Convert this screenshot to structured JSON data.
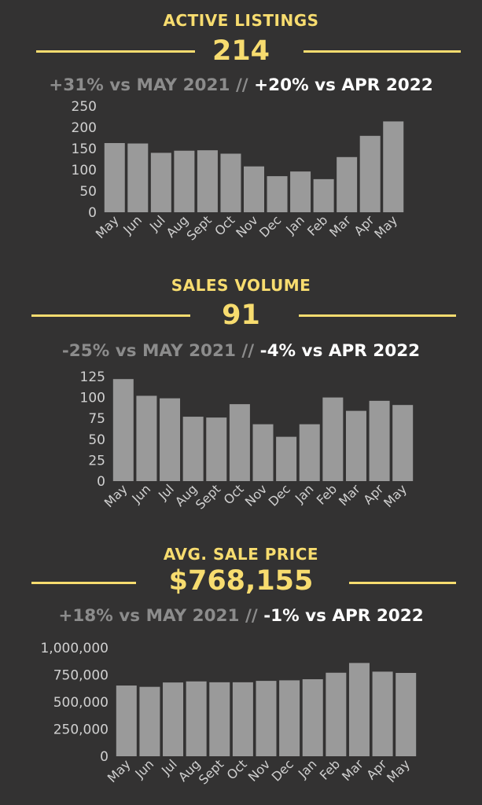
{
  "colors": {
    "background": "#333232",
    "accent": "#f7dc6f",
    "bar": "#9a9a9a",
    "axis_text": "#d0d0d0",
    "muted_text": "#8c8c8c",
    "white_text": "#ffffff"
  },
  "sections": [
    {
      "title": "ACTIVE LISTINGS",
      "value": "214",
      "compare_year": "+31% vs MAY 2021",
      "separator": "//",
      "compare_month": "+20% vs APR 2022"
    },
    {
      "title": "SALES VOLUME",
      "value": "91",
      "compare_year": "-25% vs MAY 2021",
      "separator": "//",
      "compare_month": "-4% vs APR 2022"
    },
    {
      "title": "AVG. SALE PRICE",
      "value": "$768,155",
      "compare_year": "+18% vs MAY 2021",
      "separator": "//",
      "compare_month": "-1% vs APR 2022"
    }
  ],
  "chart_data": [
    {
      "type": "bar",
      "title": "",
      "categories": [
        "May",
        "Jun",
        "Jul",
        "Aug",
        "Sept",
        "Oct",
        "Nov",
        "Dec",
        "Jan",
        "Feb",
        "Mar",
        "Apr",
        "May"
      ],
      "values": [
        163,
        162,
        140,
        145,
        146,
        138,
        108,
        85,
        96,
        78,
        130,
        180,
        214
      ],
      "ylim": [
        0,
        250
      ],
      "yticks": [
        0,
        50,
        100,
        150,
        200,
        250
      ],
      "ytick_labels": [
        "0",
        "50",
        "100",
        "150",
        "200",
        "250"
      ],
      "grid": false,
      "legend": "none"
    },
    {
      "type": "bar",
      "title": "",
      "categories": [
        "May",
        "Jun",
        "Jul",
        "Aug",
        "Sept",
        "Oct",
        "Nov",
        "Dec",
        "Jan",
        "Feb",
        "Mar",
        "Apr",
        "May"
      ],
      "values": [
        122,
        102,
        99,
        77,
        76,
        92,
        68,
        53,
        68,
        100,
        84,
        96,
        91
      ],
      "ylim": [
        0,
        125
      ],
      "yticks": [
        0,
        25,
        50,
        75,
        100,
        125
      ],
      "ytick_labels": [
        "0",
        "25",
        "50",
        "75",
        "100",
        "125"
      ],
      "grid": false,
      "legend": "none"
    },
    {
      "type": "bar",
      "title": "",
      "categories": [
        "May",
        "Jun",
        "Jul",
        "Aug",
        "Sept",
        "Oct",
        "Nov",
        "Dec",
        "Jan",
        "Feb",
        "Mar",
        "Apr",
        "May"
      ],
      "values": [
        652000,
        640000,
        680000,
        690000,
        682000,
        682000,
        695000,
        700000,
        710000,
        770000,
        860000,
        780000,
        768155
      ],
      "ylim": [
        0,
        1000000
      ],
      "yticks": [
        0,
        250000,
        500000,
        750000,
        1000000
      ],
      "ytick_labels": [
        "0",
        "250,000",
        "500,000",
        "750,000",
        "1,000,000"
      ],
      "grid": false,
      "legend": "none"
    }
  ]
}
